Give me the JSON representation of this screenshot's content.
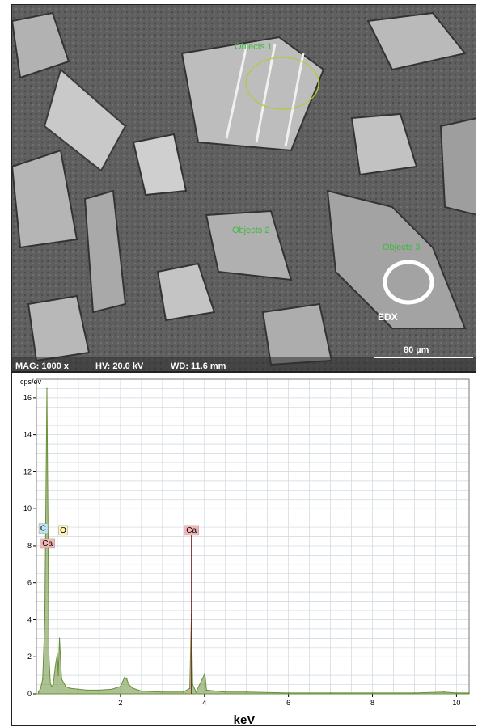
{
  "sem": {
    "annotations": [
      {
        "label": "Objects 1"
      },
      {
        "label": "Objects 2"
      },
      {
        "label": "Objects 3"
      }
    ],
    "edx_label": "EDX",
    "scale_bar": "80 µm",
    "info_bar": {
      "mag": "MAG: 1000 x",
      "hv": "HV: 20.0 kV",
      "wd": "WD: 11.6 mm"
    }
  },
  "chart_data": {
    "type": "line",
    "xlabel": "keV",
    "ylabel": "cps/ev",
    "xlim": [
      0,
      10.3
    ],
    "ylim": [
      0,
      17
    ],
    "x_ticks": [
      2,
      4,
      6,
      8,
      10
    ],
    "y_ticks": [
      0,
      2,
      4,
      6,
      8,
      10,
      12,
      14,
      16
    ],
    "grid": true,
    "series": [
      {
        "color": "#6a8f3a",
        "x": [
          0.05,
          0.1,
          0.15,
          0.2,
          0.25,
          0.28,
          0.3,
          0.33,
          0.36,
          0.4,
          0.45,
          0.5,
          0.52,
          0.55,
          0.6,
          0.7,
          0.8,
          1.0,
          1.2,
          1.5,
          1.8,
          2.0,
          2.1,
          2.15,
          2.2,
          2.3,
          2.5,
          3.0,
          3.5,
          3.65,
          3.69,
          3.72,
          3.8,
          4.01,
          4.05,
          4.5,
          5.0,
          6.0,
          7.0,
          8.0,
          9.0,
          9.7,
          10.0,
          10.3
        ],
        "y": [
          0.1,
          0.3,
          0.8,
          4.0,
          16.5,
          8.0,
          2.0,
          0.6,
          0.4,
          0.5,
          1.5,
          2.2,
          1.0,
          3.0,
          0.8,
          0.4,
          0.3,
          0.25,
          0.2,
          0.2,
          0.25,
          0.4,
          0.9,
          0.8,
          0.5,
          0.3,
          0.15,
          0.1,
          0.1,
          0.3,
          4.3,
          0.5,
          0.1,
          1.1,
          0.2,
          0.1,
          0.1,
          0.05,
          0.05,
          0.05,
          0.05,
          0.1,
          0.05,
          0.05
        ]
      }
    ],
    "peaks": [
      {
        "element": "C",
        "x": 0.28
      },
      {
        "element": "O",
        "x": 0.52
      },
      {
        "element": "Ca",
        "x": 0.34
      },
      {
        "element": "Ca",
        "x": 3.69
      }
    ],
    "colors": {
      "C": "#bfe6f0",
      "O": "#fff3b0",
      "Ca": "#f3b6b6"
    }
  }
}
